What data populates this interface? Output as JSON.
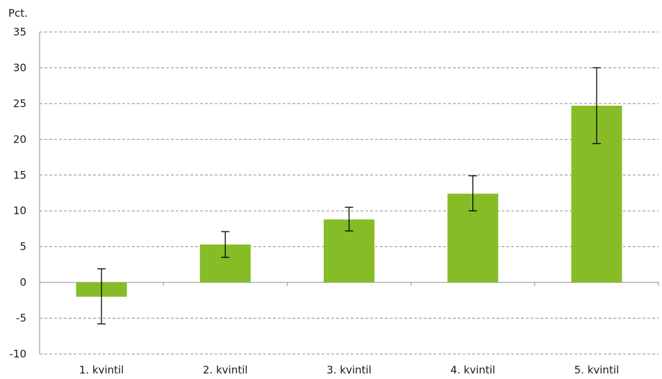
{
  "chart_data": {
    "type": "bar",
    "ylabel": "Pct.",
    "categories": [
      "1. kvintil",
      "2. kvintil",
      "3. kvintil",
      "4. kvintil",
      "5. kvintil"
    ],
    "series": [
      {
        "values": [
          -2.0,
          5.3,
          8.8,
          12.4,
          24.7
        ],
        "error_low": [
          -5.8,
          3.5,
          7.2,
          10.0,
          19.4
        ],
        "error_high": [
          1.9,
          7.1,
          10.5,
          14.9,
          30.0
        ]
      }
    ],
    "ylim": [
      -10,
      35
    ],
    "yticks": [
      -10,
      -5,
      0,
      5,
      10,
      15,
      20,
      25,
      30,
      35
    ],
    "grid": true,
    "legend": "none",
    "colors": {
      "bar": "#86BC25",
      "grid": "#8c8c8c",
      "axis": "#8c8c8c",
      "error_bar": "#000000"
    }
  }
}
